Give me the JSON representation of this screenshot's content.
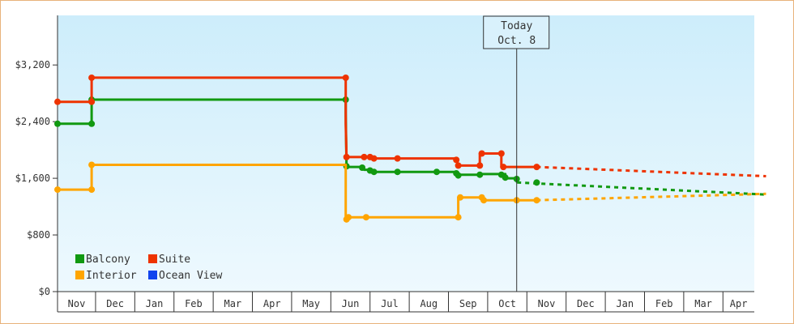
{
  "chart_data": {
    "type": "line",
    "title": "",
    "xlabel": "",
    "ylabel": "",
    "ylim": [
      0,
      3900
    ],
    "yticks": [
      {
        "value": 0,
        "label": "$0"
      },
      {
        "value": 800,
        "label": "$800"
      },
      {
        "value": 1600,
        "label": "$1,600"
      },
      {
        "value": 2400,
        "label": "$2,400"
      },
      {
        "value": 3200,
        "label": "$3,200"
      }
    ],
    "months": [
      "Nov",
      "Dec",
      "Jan",
      "Feb",
      "Mar",
      "Apr",
      "May",
      "Jun",
      "Jul",
      "Aug",
      "Sep",
      "Oct",
      "Nov",
      "Dec",
      "Jan",
      "Feb",
      "Mar",
      "Apr"
    ],
    "xlim": [
      -0.47,
      17.3
    ],
    "grid": false,
    "legend_position": "bottom-left",
    "today": {
      "line1": "Today",
      "line2": "Oct. 8",
      "x": 11.24
    },
    "series": [
      {
        "name": "Balcony",
        "color": "#119911",
        "points": [
          [
            -0.47,
            2370
          ],
          [
            0.4,
            2370
          ],
          [
            0.4,
            2710
          ],
          [
            6.88,
            2710
          ],
          [
            6.88,
            2520
          ],
          [
            6.9,
            1760
          ],
          [
            7.3,
            1760
          ],
          [
            7.35,
            1720
          ],
          [
            7.5,
            1720
          ],
          [
            7.55,
            1690
          ],
          [
            8.7,
            1690
          ],
          [
            8.9,
            1690
          ],
          [
            9.7,
            1690
          ],
          [
            9.75,
            1650
          ],
          [
            10.3,
            1650
          ],
          [
            10.3,
            1660
          ],
          [
            10.95,
            1660
          ],
          [
            10.95,
            1600
          ],
          [
            11.24,
            1600
          ],
          [
            11.25,
            1540
          ]
        ],
        "markers": [
          [
            -0.47,
            2370
          ],
          [
            0.4,
            2370
          ],
          [
            0.4,
            2710
          ],
          [
            6.88,
            2710
          ],
          [
            6.9,
            1770
          ],
          [
            7.3,
            1750
          ],
          [
            7.5,
            1710
          ],
          [
            7.6,
            1690
          ],
          [
            8.2,
            1690
          ],
          [
            9.2,
            1690
          ],
          [
            9.7,
            1670
          ],
          [
            9.75,
            1640
          ],
          [
            10.3,
            1650
          ],
          [
            10.85,
            1650
          ],
          [
            10.95,
            1610
          ],
          [
            11.24,
            1590
          ],
          [
            11.75,
            1540
          ]
        ],
        "projection": [
          [
            11.25,
            1540
          ],
          [
            17.6,
            1370
          ]
        ]
      },
      {
        "name": "Suite",
        "color": "#ee3300",
        "points": [
          [
            -0.47,
            2680
          ],
          [
            0.4,
            2680
          ],
          [
            0.4,
            3020
          ],
          [
            6.88,
            3020
          ],
          [
            6.88,
            2370
          ],
          [
            6.9,
            1900
          ],
          [
            7.35,
            1900
          ],
          [
            7.5,
            1900
          ],
          [
            7.6,
            1880
          ],
          [
            9.7,
            1880
          ],
          [
            9.75,
            1780
          ],
          [
            10.3,
            1780
          ],
          [
            10.3,
            1950
          ],
          [
            10.85,
            1950
          ],
          [
            10.85,
            1760
          ],
          [
            11.75,
            1760
          ]
        ],
        "markers": [
          [
            -0.47,
            2680
          ],
          [
            0.4,
            2680
          ],
          [
            0.4,
            3020
          ],
          [
            6.88,
            3020
          ],
          [
            6.9,
            1900
          ],
          [
            7.35,
            1900
          ],
          [
            7.5,
            1900
          ],
          [
            7.6,
            1880
          ],
          [
            8.2,
            1880
          ],
          [
            9.7,
            1860
          ],
          [
            9.75,
            1780
          ],
          [
            10.3,
            1780
          ],
          [
            10.35,
            1950
          ],
          [
            10.85,
            1950
          ],
          [
            10.9,
            1760
          ],
          [
            11.75,
            1760
          ]
        ],
        "projection": [
          [
            11.75,
            1760
          ],
          [
            17.6,
            1630
          ]
        ]
      },
      {
        "name": "Interior",
        "color": "#ffa500",
        "points": [
          [
            -0.47,
            1440
          ],
          [
            0.4,
            1440
          ],
          [
            0.4,
            1790
          ],
          [
            6.88,
            1790
          ],
          [
            6.88,
            1000
          ],
          [
            6.9,
            1050
          ],
          [
            9.75,
            1050
          ],
          [
            9.75,
            1330
          ],
          [
            10.35,
            1330
          ],
          [
            10.35,
            1290
          ],
          [
            11.75,
            1290
          ]
        ],
        "markers": [
          [
            -0.47,
            1440
          ],
          [
            0.4,
            1440
          ],
          [
            0.4,
            1790
          ],
          [
            6.9,
            1020
          ],
          [
            6.95,
            1050
          ],
          [
            7.4,
            1050
          ],
          [
            9.75,
            1050
          ],
          [
            9.8,
            1330
          ],
          [
            10.35,
            1330
          ],
          [
            10.4,
            1290
          ],
          [
            11.24,
            1290
          ],
          [
            11.75,
            1290
          ]
        ],
        "projection": [
          [
            11.75,
            1290
          ],
          [
            17.6,
            1380
          ]
        ]
      },
      {
        "name": "Ocean View",
        "color": "#1144ee",
        "points": [],
        "markers": [],
        "projection": []
      }
    ]
  }
}
